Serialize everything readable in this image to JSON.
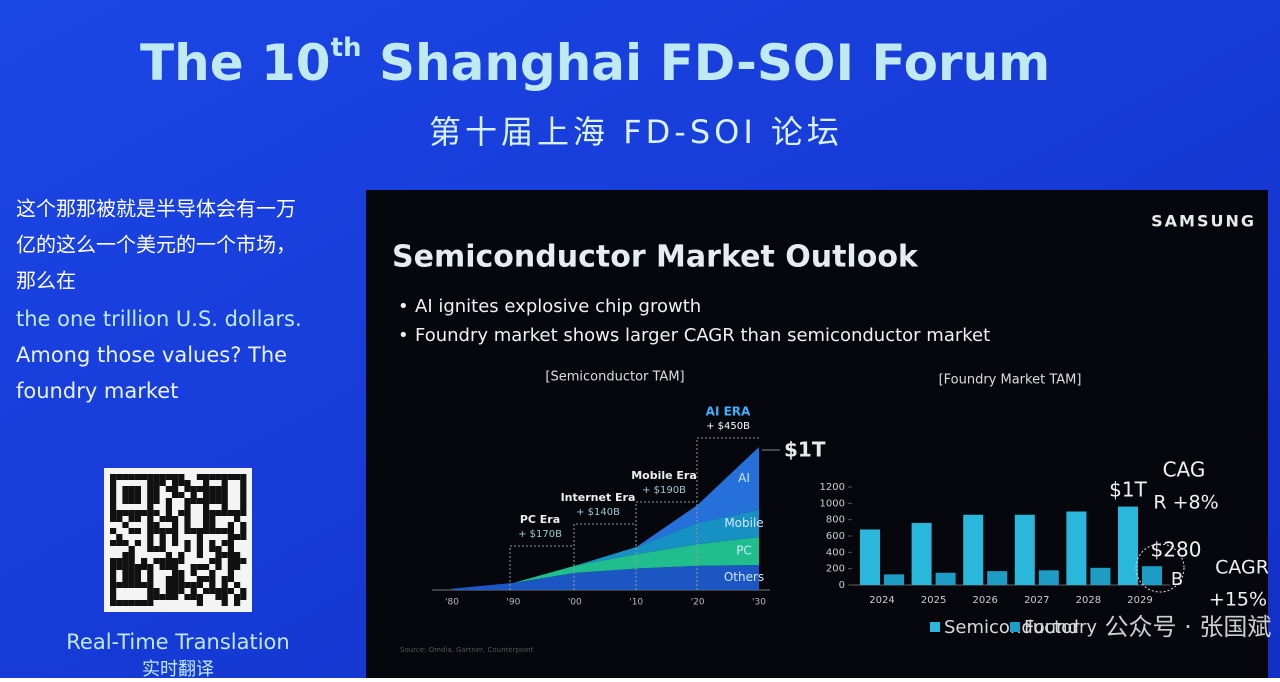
{
  "header": {
    "title": [
      "The 10",
      "th",
      " Shanghai FD-SOI Forum"
    ],
    "subtitle": "第十届上海 FD-SOI 论坛"
  },
  "translation": {
    "zh_lines": [
      "这个那那被就是半导体会有一万",
      "亿的这么一个美元的一个市场，",
      "那么在"
    ],
    "en_lines": [
      "the one trillion U.S. dollars.",
      "Among those values? The",
      "foundry market"
    ],
    "qr_label": "Real-Time Translation",
    "qr_label_zh": "实时翻译"
  },
  "slide": {
    "brand": "SAMSUNG",
    "title": "Semiconductor Market Outlook",
    "bullets": [
      "AI ignites explosive chip growth",
      "Foundry market shows larger CAGR than semiconductor market"
    ],
    "source": "Source: Omdia, Gartner, Counterpoint"
  },
  "chart_data": [
    {
      "type": "area",
      "title": "[Semiconductor TAM]",
      "x": [
        {
          "value": 1980,
          "label": "'80"
        },
        {
          "value": 1990,
          "label": "'90"
        },
        {
          "value": 2000,
          "label": "'00"
        },
        {
          "value": 2010,
          "label": "'10"
        },
        {
          "value": 2020,
          "label": "'20"
        },
        {
          "value": 2030,
          "label": "'30"
        }
      ],
      "xlim": [
        1977,
        2030
      ],
      "ylim": [
        0,
        1000
      ],
      "series": [
        {
          "name": "Others",
          "color": "#1e5fd6",
          "values": [
            10,
            50,
            120,
            150,
            170,
            175
          ]
        },
        {
          "name": "PC",
          "color": "#22d39a",
          "values": [
            0,
            0,
            50,
            100,
            150,
            196
          ]
        },
        {
          "name": "Mobile",
          "color": "#1aa0d8",
          "values": [
            0,
            0,
            0,
            50,
            150,
            189
          ]
        },
        {
          "name": "AI",
          "color": "#2a7df0",
          "values": [
            0,
            0,
            0,
            0,
            125,
            440
          ]
        }
      ],
      "annotations": [
        {
          "label": "PC Era",
          "note": "+ $170B"
        },
        {
          "label": "Internet Era",
          "note": "+ $140B"
        },
        {
          "label": "Mobile Era",
          "note": "+ $190B"
        },
        {
          "label": "AI ERA",
          "note": "+ $450B"
        }
      ],
      "end_label": "$1T"
    },
    {
      "type": "bar",
      "title": "[Foundry Market TAM]",
      "categories": [
        "2024",
        "2025",
        "2026",
        "2027",
        "2028",
        "2029"
      ],
      "ylim": [
        0,
        1200
      ],
      "yticks": [
        0,
        200,
        400,
        600,
        800,
        1000,
        1200
      ],
      "series": [
        {
          "name": "Semiconductor",
          "color": "#29b8dc",
          "values": [
            680,
            760,
            860,
            860,
            900,
            960
          ]
        },
        {
          "name": "Foundry",
          "color": "#1d9cc6",
          "values": [
            130,
            150,
            170,
            180,
            210,
            230
          ]
        }
      ],
      "annotations": [
        "$1T",
        "CAG",
        "R +8%",
        "$280",
        "B",
        "CAGR",
        "+15%"
      ]
    }
  ],
  "watermark": "公众号 · 张国斌"
}
